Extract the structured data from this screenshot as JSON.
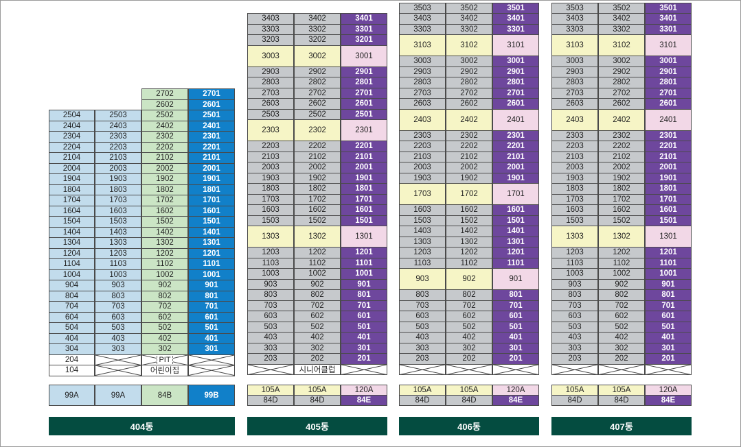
{
  "colors": {
    "gray": "#c6c9cc",
    "light_blue": "#c2dcec",
    "light_green": "#cbe5c5",
    "blue": "#1180c9",
    "purple": "#6e479d",
    "yellow": "#f6f5c6",
    "pink": "#f2d8e7",
    "block_bar": "#044c40"
  },
  "buildings": [
    {
      "name": "404동",
      "columns": 4,
      "floor_cells": [
        {
          "col": 0,
          "rows": [
            40,
            41
          ],
          "text": "2502",
          "fill": "light_green"
        },
        {
          "col": 1,
          "rows": [
            40,
            41
          ],
          "text": "2502",
          "fill": "blue"
        }
      ],
      "rows": [
        {
          "row": 0,
          "cells": [
            null,
            null,
            {
              "text": "2702",
              "fill": "light_green"
            },
            {
              "text": "2701",
              "fill": "blue"
            }
          ]
        },
        {
          "row": 1,
          "cells": [
            null,
            null,
            {
              "text": "2602",
              "fill": "light_green"
            },
            {
              "text": "2601",
              "fill": "blue"
            }
          ]
        },
        {
          "row": 2,
          "cells": [
            {
              "text": "2504",
              "fill": "light_blue"
            },
            {
              "text": "2503",
              "fill": "light_blue"
            },
            {
              "text": "2502",
              "fill": "light_green"
            },
            {
              "text": "2501",
              "fill": "blue"
            }
          ]
        },
        {
          "row": 3,
          "cells": [
            {
              "text": "2404",
              "fill": "light_blue"
            },
            {
              "text": "2403",
              "fill": "light_blue"
            },
            {
              "text": "2402",
              "fill": "light_green"
            },
            {
              "text": "2401",
              "fill": "blue"
            }
          ]
        },
        {
          "row": 4,
          "cells": [
            {
              "text": "2304",
              "fill": "light_blue"
            },
            {
              "text": "2303",
              "fill": "light_blue"
            },
            {
              "text": "2302",
              "fill": "light_green"
            },
            {
              "text": "2301",
              "fill": "blue"
            }
          ]
        },
        {
          "row": 5,
          "cells": [
            {
              "text": "2204",
              "fill": "light_blue"
            },
            {
              "text": "2203",
              "fill": "light_blue"
            },
            {
              "text": "2202",
              "fill": "light_green"
            },
            {
              "text": "2201",
              "fill": "blue"
            }
          ]
        },
        {
          "row": 6,
          "cells": [
            {
              "text": "2104",
              "fill": "light_blue"
            },
            {
              "text": "2103",
              "fill": "light_blue"
            },
            {
              "text": "2102",
              "fill": "light_green"
            },
            {
              "text": "2101",
              "fill": "blue"
            }
          ]
        },
        {
          "row": 7,
          "cells": [
            {
              "text": "2004",
              "fill": "light_blue"
            },
            {
              "text": "2003",
              "fill": "light_blue"
            },
            {
              "text": "2002",
              "fill": "light_green"
            },
            {
              "text": "2001",
              "fill": "blue"
            }
          ]
        },
        {
          "row": 8,
          "cells": [
            {
              "text": "1904",
              "fill": "light_blue"
            },
            {
              "text": "1903",
              "fill": "light_blue"
            },
            {
              "text": "1902",
              "fill": "light_green"
            },
            {
              "text": "1901",
              "fill": "blue"
            }
          ]
        },
        {
          "row": 9,
          "cells": [
            {
              "text": "1804",
              "fill": "light_blue"
            },
            {
              "text": "1803",
              "fill": "light_blue"
            },
            {
              "text": "1802",
              "fill": "light_green"
            },
            {
              "text": "1801",
              "fill": "blue"
            }
          ]
        },
        {
          "row": 10,
          "cells": [
            {
              "text": "1704",
              "fill": "light_blue"
            },
            {
              "text": "1703",
              "fill": "light_blue"
            },
            {
              "text": "1702",
              "fill": "light_green"
            },
            {
              "text": "1701",
              "fill": "blue"
            }
          ]
        },
        {
          "row": 11,
          "cells": [
            {
              "text": "1604",
              "fill": "light_blue"
            },
            {
              "text": "1603",
              "fill": "light_blue"
            },
            {
              "text": "1602",
              "fill": "light_green"
            },
            {
              "text": "1601",
              "fill": "blue"
            }
          ]
        },
        {
          "row": 12,
          "cells": [
            {
              "text": "1504",
              "fill": "light_blue"
            },
            {
              "text": "1503",
              "fill": "light_blue"
            },
            {
              "text": "1502",
              "fill": "light_green"
            },
            {
              "text": "1501",
              "fill": "blue"
            }
          ]
        },
        {
          "row": 13,
          "cells": [
            {
              "text": "1404",
              "fill": "light_blue"
            },
            {
              "text": "1403",
              "fill": "light_blue"
            },
            {
              "text": "1402",
              "fill": "light_green"
            },
            {
              "text": "1401",
              "fill": "blue"
            }
          ]
        },
        {
          "row": 14,
          "cells": [
            {
              "text": "1304",
              "fill": "light_blue"
            },
            {
              "text": "1303",
              "fill": "light_blue"
            },
            {
              "text": "1302",
              "fill": "light_green"
            },
            {
              "text": "1301",
              "fill": "blue"
            }
          ]
        },
        {
          "row": 15,
          "cells": [
            {
              "text": "1204",
              "fill": "light_blue"
            },
            {
              "text": "1203",
              "fill": "light_blue"
            },
            {
              "text": "1202",
              "fill": "light_green"
            },
            {
              "text": "1201",
              "fill": "blue"
            }
          ]
        },
        {
          "row": 16,
          "cells": [
            {
              "text": "1104",
              "fill": "light_blue"
            },
            {
              "text": "1103",
              "fill": "light_blue"
            },
            {
              "text": "1102",
              "fill": "light_green"
            },
            {
              "text": "1101",
              "fill": "blue"
            }
          ]
        },
        {
          "row": 17,
          "cells": [
            {
              "text": "1004",
              "fill": "light_blue"
            },
            {
              "text": "1003",
              "fill": "light_blue"
            },
            {
              "text": "1002",
              "fill": "light_green"
            },
            {
              "text": "1001",
              "fill": "blue"
            }
          ]
        },
        {
          "row": 18,
          "cells": [
            {
              "text": "904",
              "fill": "light_blue"
            },
            {
              "text": "903",
              "fill": "light_blue"
            },
            {
              "text": "902",
              "fill": "light_green"
            },
            {
              "text": "901",
              "fill": "blue"
            }
          ]
        },
        {
          "row": 19,
          "cells": [
            {
              "text": "804",
              "fill": "light_blue"
            },
            {
              "text": "803",
              "fill": "light_blue"
            },
            {
              "text": "802",
              "fill": "light_green"
            },
            {
              "text": "801",
              "fill": "blue"
            }
          ]
        },
        {
          "row": 20,
          "cells": [
            {
              "text": "704",
              "fill": "light_blue"
            },
            {
              "text": "703",
              "fill": "light_blue"
            },
            {
              "text": "702",
              "fill": "light_green"
            },
            {
              "text": "701",
              "fill": "blue"
            }
          ]
        },
        {
          "row": 21,
          "cells": [
            {
              "text": "604",
              "fill": "light_blue"
            },
            {
              "text": "603",
              "fill": "light_blue"
            },
            {
              "text": "602",
              "fill": "light_green"
            },
            {
              "text": "601",
              "fill": "blue"
            }
          ]
        },
        {
          "row": 22,
          "cells": [
            {
              "text": "504",
              "fill": "light_blue"
            },
            {
              "text": "503",
              "fill": "light_blue"
            },
            {
              "text": "502",
              "fill": "light_green"
            },
            {
              "text": "501",
              "fill": "blue"
            }
          ]
        },
        {
          "row": 23,
          "cells": [
            {
              "text": "404",
              "fill": "light_blue"
            },
            {
              "text": "403",
              "fill": "light_blue"
            },
            {
              "text": "402",
              "fill": "light_green"
            },
            {
              "text": "401",
              "fill": "blue"
            }
          ]
        },
        {
          "row": 24,
          "cells": [
            {
              "text": "304",
              "fill": "light_blue"
            },
            {
              "text": "303",
              "fill": "light_blue"
            },
            {
              "text": "302",
              "fill": "light_green"
            },
            {
              "text": "301",
              "fill": "blue"
            }
          ]
        },
        {
          "row": 25,
          "cells": [
            {
              "text": "204",
              "fill": "white"
            },
            {
              "x": true
            },
            {
              "x": true,
              "label": "PIT",
              "dash": true
            },
            {
              "x": true
            }
          ]
        },
        {
          "row": 26,
          "cells": [
            {
              "text": "104",
              "fill": "white"
            },
            {
              "x": true
            },
            {
              "x": false,
              "text": "어린이집",
              "fill": "white"
            },
            {
              "x": true
            }
          ]
        }
      ],
      "types": [
        {
          "text": "99A",
          "fill": "light_blue"
        },
        {
          "text": "99A",
          "fill": "light_blue"
        },
        {
          "text": "84B",
          "fill": "light_green"
        },
        {
          "text": "99B",
          "fill": "blue"
        }
      ]
    }
  ],
  "labels": {
    "b404": "404동",
    "b405": "405동",
    "b406": "406동",
    "b407": "407동",
    "senior_club": "시니어클럽",
    "daycare": "어린이집",
    "pit": "PIT"
  },
  "type_rows": {
    "top": [
      "105A",
      "105A",
      "120A"
    ],
    "bottom": [
      "84D",
      "84D",
      "84E"
    ]
  },
  "b405_rows": [
    [
      "3403",
      "3402",
      "3401"
    ],
    [
      "3303",
      "3302",
      "3301"
    ],
    [
      "3203",
      "3202",
      "3201"
    ],
    [
      "3003",
      "3002",
      "3001",
      "tall"
    ],
    [
      "2903",
      "2902",
      "2901"
    ],
    [
      "2803",
      "2802",
      "2801"
    ],
    [
      "2703",
      "2702",
      "2701"
    ],
    [
      "2603",
      "2602",
      "2601"
    ],
    [
      "2503",
      "2502",
      "2501"
    ],
    [
      "2303",
      "2302",
      "2301",
      "tall"
    ],
    [
      "2203",
      "2202",
      "2201"
    ],
    [
      "2103",
      "2102",
      "2101"
    ],
    [
      "2003",
      "2002",
      "2001"
    ],
    [
      "1903",
      "1902",
      "1901"
    ],
    [
      "1803",
      "1802",
      "1801"
    ],
    [
      "1703",
      "1702",
      "1701"
    ],
    [
      "1603",
      "1602",
      "1601"
    ],
    [
      "1503",
      "1502",
      "1501"
    ],
    [
      "1303",
      "1302",
      "1301",
      "tall"
    ],
    [
      "1203",
      "1202",
      "1201"
    ],
    [
      "1103",
      "1102",
      "1101"
    ],
    [
      "1003",
      "1002",
      "1001"
    ],
    [
      "903",
      "902",
      "901"
    ],
    [
      "803",
      "802",
      "801"
    ],
    [
      "703",
      "702",
      "701"
    ],
    [
      "603",
      "602",
      "601"
    ],
    [
      "503",
      "502",
      "501"
    ],
    [
      "403",
      "402",
      "401"
    ],
    [
      "303",
      "302",
      "301"
    ],
    [
      "203",
      "202",
      "201"
    ]
  ],
  "b406_rows": [
    [
      "3503",
      "3502",
      "3501"
    ],
    [
      "3403",
      "3402",
      "3401"
    ],
    [
      "3303",
      "3302",
      "3301"
    ],
    [
      "3103",
      "3102",
      "3101",
      "tall"
    ],
    [
      "3003",
      "3002",
      "3001"
    ],
    [
      "2903",
      "2902",
      "2901"
    ],
    [
      "2803",
      "2802",
      "2801"
    ],
    [
      "2703",
      "2702",
      "2701"
    ],
    [
      "2603",
      "2602",
      "2601"
    ],
    [
      "2403",
      "2402",
      "2401",
      "tall"
    ],
    [
      "2303",
      "2302",
      "2301"
    ],
    [
      "2203",
      "2202",
      "2201"
    ],
    [
      "2103",
      "2102",
      "2101"
    ],
    [
      "2003",
      "2002",
      "2001"
    ],
    [
      "1903",
      "1902",
      "1901"
    ],
    [
      "1703",
      "1702",
      "1701",
      "tall"
    ],
    [
      "1603",
      "1602",
      "1601"
    ],
    [
      "1503",
      "1502",
      "1501"
    ],
    [
      "1403",
      "1402",
      "1401"
    ],
    [
      "1303",
      "1302",
      "1301"
    ],
    [
      "1203",
      "1202",
      "1201"
    ],
    [
      "1103",
      "1102",
      "1101"
    ],
    [
      "903",
      "902",
      "901",
      "tall"
    ],
    [
      "803",
      "802",
      "801"
    ],
    [
      "703",
      "702",
      "701"
    ],
    [
      "603",
      "602",
      "601"
    ],
    [
      "503",
      "502",
      "501"
    ],
    [
      "403",
      "402",
      "401"
    ],
    [
      "303",
      "302",
      "301"
    ],
    [
      "203",
      "202",
      "201"
    ]
  ],
  "b407_rows": [
    [
      "3503",
      "3502",
      "3501"
    ],
    [
      "3403",
      "3402",
      "3401"
    ],
    [
      "3303",
      "3302",
      "3301"
    ],
    [
      "3103",
      "3102",
      "3101",
      "tall"
    ],
    [
      "3003",
      "3002",
      "3001"
    ],
    [
      "2903",
      "2902",
      "2901"
    ],
    [
      "2803",
      "2802",
      "2801"
    ],
    [
      "2703",
      "2702",
      "2701"
    ],
    [
      "2603",
      "2602",
      "2601"
    ],
    [
      "2403",
      "2402",
      "2401",
      "tall"
    ],
    [
      "2303",
      "2302",
      "2301"
    ],
    [
      "2203",
      "2202",
      "2201"
    ],
    [
      "2103",
      "2102",
      "2101"
    ],
    [
      "2003",
      "2002",
      "2001"
    ],
    [
      "1903",
      "1902",
      "1901"
    ],
    [
      "1803",
      "1802",
      "1801"
    ],
    [
      "1703",
      "1702",
      "1701"
    ],
    [
      "1603",
      "1602",
      "1601"
    ],
    [
      "1503",
      "1502",
      "1501"
    ],
    [
      "1303",
      "1302",
      "1301",
      "tall"
    ],
    [
      "1203",
      "1202",
      "1201"
    ],
    [
      "1103",
      "1102",
      "1101"
    ],
    [
      "1003",
      "1002",
      "1001"
    ],
    [
      "903",
      "902",
      "901"
    ],
    [
      "803",
      "802",
      "801"
    ],
    [
      "703",
      "702",
      "701"
    ],
    [
      "603",
      "602",
      "601"
    ],
    [
      "503",
      "502",
      "501"
    ],
    [
      "403",
      "402",
      "401"
    ],
    [
      "303",
      "302",
      "301"
    ],
    [
      "203",
      "202",
      "201"
    ]
  ]
}
